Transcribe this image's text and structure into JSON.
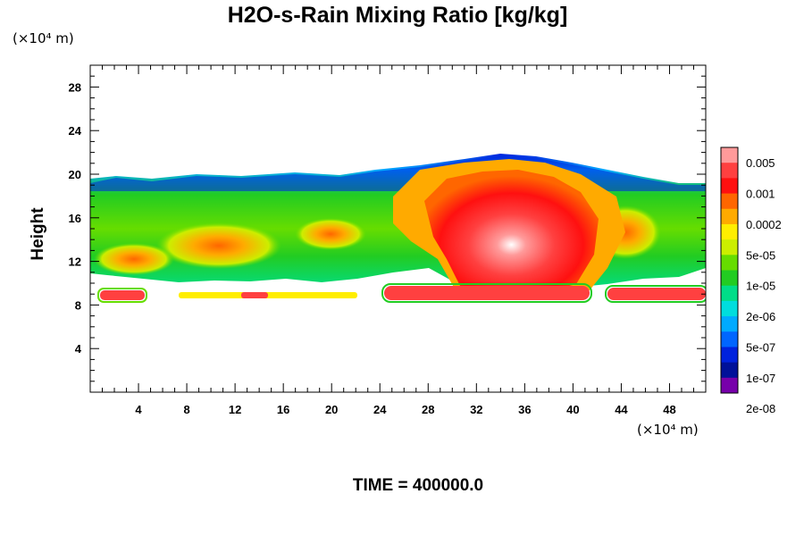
{
  "chart_data": {
    "type": "heatmap",
    "title": "H2O-s-Rain Mixing Ratio [kg/kg]",
    "ylabel": "Height",
    "x_unit": "(×10⁴ m)",
    "y_unit": "(×10⁴ m)",
    "xlim": [
      0,
      51
    ],
    "ylim": [
      0,
      30
    ],
    "x_ticks": [
      4,
      8,
      12,
      16,
      20,
      24,
      28,
      32,
      36,
      40,
      44,
      48
    ],
    "y_ticks": [
      4,
      8,
      12,
      16,
      20,
      24,
      28
    ],
    "x_tick_labels": [
      "4",
      "8",
      "12",
      "16",
      "20",
      "24",
      "28",
      "32",
      "36",
      "40",
      "44",
      "48"
    ],
    "y_tick_labels": [
      "4",
      "8",
      "12",
      "16",
      "20",
      "24",
      "28"
    ],
    "colorbar": {
      "colors": [
        "#ff9a9a",
        "#ff4040",
        "#ff1010",
        "#ff6600",
        "#ffaa00",
        "#ffee00",
        "#ccee00",
        "#66dd00",
        "#22cc22",
        "#00dd88",
        "#00dddd",
        "#00aaff",
        "#0066ff",
        "#0022dd",
        "#001199",
        "#7700aa"
      ],
      "labels": [
        "0.005",
        "0.001",
        "0.0002",
        "5e-05",
        "1e-05",
        "2e-06",
        "5e-07",
        "1e-07",
        "2e-08"
      ]
    },
    "time_label": "TIME = 400000.0"
  }
}
